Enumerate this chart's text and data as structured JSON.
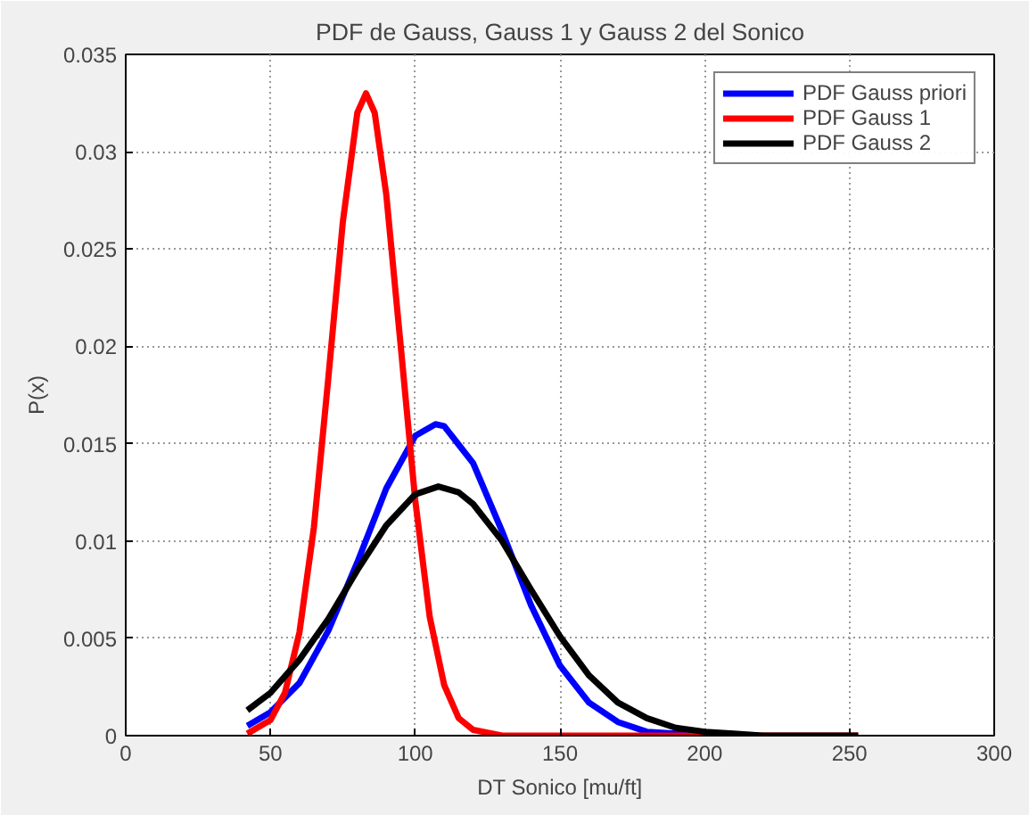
{
  "chart_data": {
    "type": "line",
    "title": "PDF de Gauss, Gauss 1 y Gauss 2 del Sonico",
    "xlabel": "DT Sonico [mu/ft]",
    "ylabel": "P(x)",
    "xlim": [
      0,
      300
    ],
    "xticks": [
      0,
      50,
      100,
      150,
      200,
      250,
      300
    ],
    "ylim": [
      0,
      0.035
    ],
    "yticks": [
      0,
      0.005,
      0.01,
      0.015,
      0.02,
      0.025,
      0.03,
      0.035
    ],
    "grid": true,
    "legend": "top right",
    "marker": "none",
    "line_style": "solid",
    "series": [
      {
        "name": "PDF Gauss priori",
        "color": "#0000ff",
        "x": [
          42,
          50,
          60,
          70,
          80,
          90,
          100,
          107,
          110,
          120,
          130,
          140,
          150,
          160,
          170,
          180,
          190,
          200
        ],
        "values": [
          0.0005,
          0.0012,
          0.0027,
          0.0054,
          0.0089,
          0.0127,
          0.0154,
          0.016,
          0.0159,
          0.014,
          0.0105,
          0.0067,
          0.0036,
          0.0017,
          0.0007,
          0.0002,
          0.0001,
          0
        ]
      },
      {
        "name": "PDF Gauss 1",
        "color": "#ff0000",
        "x": [
          42,
          50,
          55,
          60,
          65,
          70,
          75,
          80,
          83,
          86,
          90,
          95,
          100,
          105,
          110,
          115,
          120,
          130,
          140,
          253
        ],
        "values": [
          0.0001,
          0.0008,
          0.0022,
          0.0053,
          0.0107,
          0.0184,
          0.0264,
          0.032,
          0.033,
          0.032,
          0.0278,
          0.02,
          0.0121,
          0.0061,
          0.0026,
          0.0009,
          0.0003,
          0,
          0,
          0
        ]
      },
      {
        "name": "PDF Gauss 2",
        "color": "#000000",
        "x": [
          42,
          50,
          60,
          70,
          80,
          90,
          100,
          108,
          115,
          120,
          130,
          140,
          150,
          160,
          170,
          180,
          190,
          200,
          210,
          220,
          253
        ],
        "values": [
          0.0013,
          0.0022,
          0.0039,
          0.006,
          0.0085,
          0.0108,
          0.0124,
          0.0128,
          0.0125,
          0.0119,
          0.01,
          0.0075,
          0.0051,
          0.0031,
          0.0017,
          0.0009,
          0.0004,
          0.0002,
          0.0001,
          0,
          0
        ]
      }
    ]
  }
}
